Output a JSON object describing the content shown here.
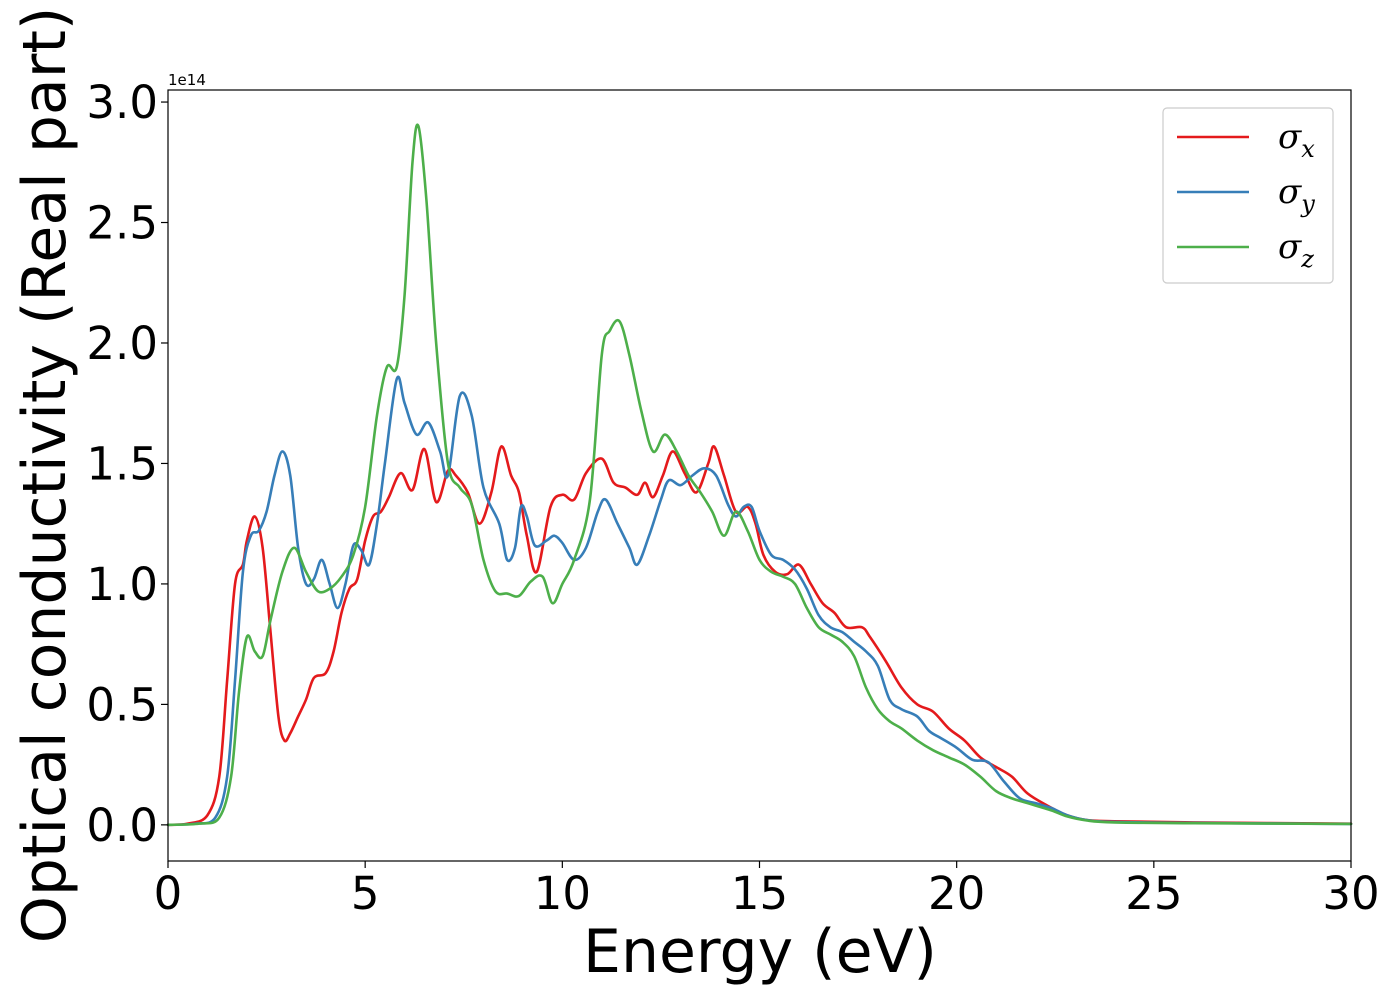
{
  "chart_data": {
    "type": "line",
    "xlabel": "Energy (eV)",
    "ylabel": "Optical conductivity (Real part)",
    "y_offset_label": "1e14",
    "xlim": [
      0,
      30
    ],
    "ylim": [
      -0.15,
      3.05
    ],
    "x_ticks": [
      0,
      5,
      10,
      15,
      20,
      25,
      30
    ],
    "x_tick_labels": [
      "0",
      "5",
      "10",
      "15",
      "20",
      "25",
      "30"
    ],
    "y_ticks": [
      0.0,
      0.5,
      1.0,
      1.5,
      2.0,
      2.5,
      3.0
    ],
    "y_tick_labels": [
      "0.0",
      "0.5",
      "1.0",
      "1.5",
      "2.0",
      "2.5",
      "3.0"
    ],
    "grid": false,
    "legend_position": "top-right",
    "series": [
      {
        "name": "σx",
        "symbol": "σ",
        "subscript": "x",
        "color": "#e41a1c",
        "points": [
          [
            0,
            0
          ],
          [
            0.5,
            0.005
          ],
          [
            1.0,
            0.04
          ],
          [
            1.3,
            0.2
          ],
          [
            1.5,
            0.6
          ],
          [
            1.7,
            1.0
          ],
          [
            1.9,
            1.08
          ],
          [
            2.0,
            1.18
          ],
          [
            2.2,
            1.28
          ],
          [
            2.4,
            1.15
          ],
          [
            2.6,
            0.8
          ],
          [
            2.8,
            0.45
          ],
          [
            2.95,
            0.35
          ],
          [
            3.1,
            0.38
          ],
          [
            3.3,
            0.45
          ],
          [
            3.5,
            0.52
          ],
          [
            3.7,
            0.61
          ],
          [
            4.0,
            0.63
          ],
          [
            4.2,
            0.72
          ],
          [
            4.4,
            0.88
          ],
          [
            4.6,
            0.98
          ],
          [
            4.8,
            1.02
          ],
          [
            5.0,
            1.18
          ],
          [
            5.2,
            1.28
          ],
          [
            5.4,
            1.3
          ],
          [
            5.6,
            1.36
          ],
          [
            5.9,
            1.46
          ],
          [
            6.2,
            1.39
          ],
          [
            6.5,
            1.56
          ],
          [
            6.8,
            1.34
          ],
          [
            7.1,
            1.47
          ],
          [
            7.3,
            1.45
          ],
          [
            7.6,
            1.38
          ],
          [
            7.9,
            1.25
          ],
          [
            8.2,
            1.38
          ],
          [
            8.45,
            1.57
          ],
          [
            8.7,
            1.45
          ],
          [
            8.9,
            1.38
          ],
          [
            9.1,
            1.2
          ],
          [
            9.35,
            1.05
          ],
          [
            9.7,
            1.32
          ],
          [
            10.0,
            1.37
          ],
          [
            10.3,
            1.35
          ],
          [
            10.6,
            1.46
          ],
          [
            11.0,
            1.52
          ],
          [
            11.3,
            1.42
          ],
          [
            11.6,
            1.4
          ],
          [
            11.9,
            1.37
          ],
          [
            12.1,
            1.42
          ],
          [
            12.3,
            1.36
          ],
          [
            12.55,
            1.45
          ],
          [
            12.8,
            1.55
          ],
          [
            13.1,
            1.46
          ],
          [
            13.4,
            1.38
          ],
          [
            13.7,
            1.5
          ],
          [
            13.85,
            1.57
          ],
          [
            14.1,
            1.45
          ],
          [
            14.4,
            1.3
          ],
          [
            14.7,
            1.32
          ],
          [
            14.9,
            1.25
          ],
          [
            15.1,
            1.12
          ],
          [
            15.4,
            1.05
          ],
          [
            15.7,
            1.04
          ],
          [
            16.0,
            1.08
          ],
          [
            16.3,
            1.0
          ],
          [
            16.6,
            0.92
          ],
          [
            16.9,
            0.88
          ],
          [
            17.2,
            0.82
          ],
          [
            17.6,
            0.82
          ],
          [
            17.8,
            0.78
          ],
          [
            18.2,
            0.68
          ],
          [
            18.6,
            0.57
          ],
          [
            19.0,
            0.5
          ],
          [
            19.4,
            0.47
          ],
          [
            19.8,
            0.4
          ],
          [
            20.2,
            0.35
          ],
          [
            20.6,
            0.28
          ],
          [
            21.0,
            0.24
          ],
          [
            21.4,
            0.2
          ],
          [
            21.8,
            0.13
          ],
          [
            22.3,
            0.08
          ],
          [
            22.8,
            0.04
          ],
          [
            23.3,
            0.02
          ],
          [
            24.0,
            0.015
          ],
          [
            26.0,
            0.01
          ],
          [
            30.0,
            0.005
          ]
        ]
      },
      {
        "name": "σy",
        "symbol": "σ",
        "subscript": "y",
        "color": "#377eb8",
        "points": [
          [
            0,
            0
          ],
          [
            0.7,
            0.005
          ],
          [
            1.2,
            0.03
          ],
          [
            1.5,
            0.2
          ],
          [
            1.7,
            0.6
          ],
          [
            1.9,
            1.05
          ],
          [
            2.1,
            1.2
          ],
          [
            2.3,
            1.22
          ],
          [
            2.5,
            1.3
          ],
          [
            2.7,
            1.45
          ],
          [
            2.9,
            1.55
          ],
          [
            3.1,
            1.45
          ],
          [
            3.3,
            1.15
          ],
          [
            3.5,
            1.0
          ],
          [
            3.7,
            1.02
          ],
          [
            3.9,
            1.1
          ],
          [
            4.1,
            1.0
          ],
          [
            4.3,
            0.9
          ],
          [
            4.5,
            1.0
          ],
          [
            4.7,
            1.16
          ],
          [
            4.9,
            1.14
          ],
          [
            5.1,
            1.08
          ],
          [
            5.3,
            1.25
          ],
          [
            5.5,
            1.5
          ],
          [
            5.8,
            1.85
          ],
          [
            6.0,
            1.75
          ],
          [
            6.3,
            1.62
          ],
          [
            6.6,
            1.67
          ],
          [
            6.9,
            1.55
          ],
          [
            7.1,
            1.45
          ],
          [
            7.4,
            1.78
          ],
          [
            7.7,
            1.7
          ],
          [
            8.0,
            1.4
          ],
          [
            8.4,
            1.25
          ],
          [
            8.6,
            1.1
          ],
          [
            8.8,
            1.15
          ],
          [
            8.95,
            1.32
          ],
          [
            9.1,
            1.28
          ],
          [
            9.3,
            1.16
          ],
          [
            9.6,
            1.18
          ],
          [
            9.8,
            1.2
          ],
          [
            10.0,
            1.17
          ],
          [
            10.3,
            1.1
          ],
          [
            10.6,
            1.15
          ],
          [
            10.9,
            1.3
          ],
          [
            11.1,
            1.35
          ],
          [
            11.4,
            1.25
          ],
          [
            11.7,
            1.15
          ],
          [
            11.9,
            1.08
          ],
          [
            12.2,
            1.2
          ],
          [
            12.5,
            1.35
          ],
          [
            12.7,
            1.43
          ],
          [
            13.0,
            1.41
          ],
          [
            13.3,
            1.45
          ],
          [
            13.6,
            1.48
          ],
          [
            13.9,
            1.45
          ],
          [
            14.2,
            1.33
          ],
          [
            14.4,
            1.28
          ],
          [
            14.6,
            1.32
          ],
          [
            14.8,
            1.32
          ],
          [
            15.0,
            1.22
          ],
          [
            15.3,
            1.12
          ],
          [
            15.6,
            1.1
          ],
          [
            15.9,
            1.06
          ],
          [
            16.2,
            0.98
          ],
          [
            16.5,
            0.87
          ],
          [
            16.8,
            0.82
          ],
          [
            17.1,
            0.8
          ],
          [
            17.4,
            0.76
          ],
          [
            17.7,
            0.72
          ],
          [
            18.0,
            0.66
          ],
          [
            18.3,
            0.52
          ],
          [
            18.6,
            0.48
          ],
          [
            19.0,
            0.45
          ],
          [
            19.3,
            0.39
          ],
          [
            19.6,
            0.36
          ],
          [
            20.0,
            0.32
          ],
          [
            20.4,
            0.27
          ],
          [
            20.8,
            0.26
          ],
          [
            21.2,
            0.18
          ],
          [
            21.6,
            0.11
          ],
          [
            22.0,
            0.09
          ],
          [
            22.4,
            0.07
          ],
          [
            22.8,
            0.04
          ],
          [
            23.3,
            0.02
          ],
          [
            24.0,
            0.012
          ],
          [
            26.0,
            0.008
          ],
          [
            30.0,
            0.004
          ]
        ]
      },
      {
        "name": "σz",
        "symbol": "σ",
        "subscript": "z",
        "color": "#4daf4a",
        "points": [
          [
            0,
            0
          ],
          [
            0.8,
            0.005
          ],
          [
            1.3,
            0.03
          ],
          [
            1.6,
            0.2
          ],
          [
            1.8,
            0.55
          ],
          [
            2.0,
            0.78
          ],
          [
            2.2,
            0.72
          ],
          [
            2.4,
            0.7
          ],
          [
            2.6,
            0.85
          ],
          [
            2.9,
            1.05
          ],
          [
            3.2,
            1.15
          ],
          [
            3.5,
            1.05
          ],
          [
            3.8,
            0.97
          ],
          [
            4.1,
            0.98
          ],
          [
            4.4,
            1.03
          ],
          [
            4.7,
            1.12
          ],
          [
            5.0,
            1.32
          ],
          [
            5.3,
            1.7
          ],
          [
            5.55,
            1.9
          ],
          [
            5.8,
            1.9
          ],
          [
            6.0,
            2.2
          ],
          [
            6.2,
            2.75
          ],
          [
            6.35,
            2.9
          ],
          [
            6.55,
            2.6
          ],
          [
            6.8,
            2.0
          ],
          [
            7.1,
            1.5
          ],
          [
            7.4,
            1.4
          ],
          [
            7.7,
            1.33
          ],
          [
            8.0,
            1.1
          ],
          [
            8.3,
            0.97
          ],
          [
            8.6,
            0.96
          ],
          [
            8.9,
            0.95
          ],
          [
            9.2,
            1.01
          ],
          [
            9.5,
            1.03
          ],
          [
            9.75,
            0.92
          ],
          [
            10.0,
            1.0
          ],
          [
            10.3,
            1.1
          ],
          [
            10.7,
            1.35
          ],
          [
            11.0,
            1.95
          ],
          [
            11.2,
            2.05
          ],
          [
            11.45,
            2.09
          ],
          [
            11.7,
            1.95
          ],
          [
            12.0,
            1.72
          ],
          [
            12.3,
            1.55
          ],
          [
            12.6,
            1.62
          ],
          [
            12.9,
            1.55
          ],
          [
            13.2,
            1.45
          ],
          [
            13.5,
            1.38
          ],
          [
            13.8,
            1.3
          ],
          [
            14.1,
            1.2
          ],
          [
            14.4,
            1.3
          ],
          [
            14.7,
            1.22
          ],
          [
            15.0,
            1.1
          ],
          [
            15.3,
            1.05
          ],
          [
            15.6,
            1.03
          ],
          [
            15.9,
            1.0
          ],
          [
            16.2,
            0.9
          ],
          [
            16.5,
            0.82
          ],
          [
            16.8,
            0.79
          ],
          [
            17.1,
            0.76
          ],
          [
            17.4,
            0.7
          ],
          [
            17.7,
            0.57
          ],
          [
            18.0,
            0.48
          ],
          [
            18.3,
            0.43
          ],
          [
            18.6,
            0.4
          ],
          [
            19.0,
            0.35
          ],
          [
            19.4,
            0.31
          ],
          [
            19.8,
            0.28
          ],
          [
            20.2,
            0.25
          ],
          [
            20.6,
            0.2
          ],
          [
            21.0,
            0.14
          ],
          [
            21.4,
            0.11
          ],
          [
            21.8,
            0.09
          ],
          [
            22.4,
            0.06
          ],
          [
            22.8,
            0.035
          ],
          [
            23.3,
            0.018
          ],
          [
            24.0,
            0.01
          ],
          [
            26.0,
            0.007
          ],
          [
            30.0,
            0.004
          ]
        ]
      }
    ]
  }
}
